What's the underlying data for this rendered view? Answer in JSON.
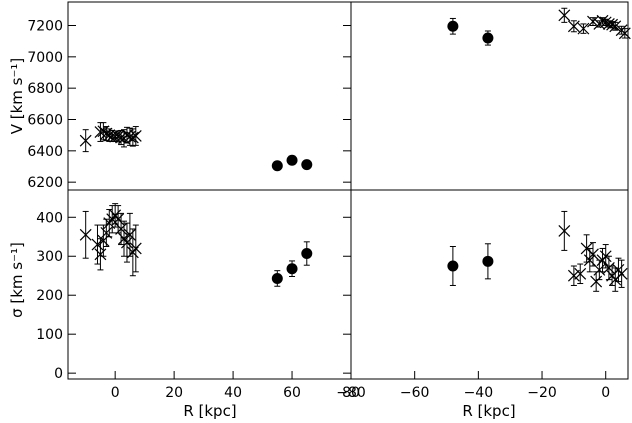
{
  "chart_data": [
    {
      "type": "scatter",
      "panel": "top-left",
      "ylabel": "V [km s⁻¹]",
      "xlim": [
        -16,
        80
      ],
      "ylim": [
        6150,
        7350
      ],
      "yticks": [
        6200,
        6400,
        6600,
        6800,
        7000,
        7200
      ],
      "series": [
        {
          "marker": "cross",
          "points": [
            {
              "x": -10,
              "y": 6465,
              "err": 70
            },
            {
              "x": -5,
              "y": 6520,
              "err": 60
            },
            {
              "x": -4,
              "y": 6525,
              "err": 55
            },
            {
              "x": -3,
              "y": 6510,
              "err": 45
            },
            {
              "x": -2,
              "y": 6500,
              "err": 40
            },
            {
              "x": -1,
              "y": 6495,
              "err": 35
            },
            {
              "x": 0,
              "y": 6490,
              "err": 30
            },
            {
              "x": 1,
              "y": 6492,
              "err": 35
            },
            {
              "x": 2,
              "y": 6485,
              "err": 45
            },
            {
              "x": 3,
              "y": 6480,
              "err": 55
            },
            {
              "x": 4,
              "y": 6500,
              "err": 50
            },
            {
              "x": 5,
              "y": 6490,
              "err": 55
            },
            {
              "x": 6,
              "y": 6485,
              "err": 55
            },
            {
              "x": 7,
              "y": 6495,
              "err": 60
            }
          ]
        },
        {
          "marker": "circle",
          "points": [
            {
              "x": 55,
              "y": 6305,
              "err": 15
            },
            {
              "x": 60,
              "y": 6340,
              "err": 15
            },
            {
              "x": 65,
              "y": 6312,
              "err": 15
            }
          ]
        }
      ]
    },
    {
      "type": "scatter",
      "panel": "top-right",
      "xlim": [
        -80,
        7
      ],
      "ylim": [
        6150,
        7350
      ],
      "series": [
        {
          "marker": "cross",
          "points": [
            {
              "x": -13,
              "y": 7265,
              "err": 45
            },
            {
              "x": -10,
              "y": 7195,
              "err": 35
            },
            {
              "x": -7,
              "y": 7180,
              "err": 30
            },
            {
              "x": -4,
              "y": 7225,
              "err": 25
            },
            {
              "x": -2,
              "y": 7210,
              "err": 20
            },
            {
              "x": -1,
              "y": 7230,
              "err": 20
            },
            {
              "x": 0,
              "y": 7220,
              "err": 20
            },
            {
              "x": 1,
              "y": 7210,
              "err": 20
            },
            {
              "x": 2,
              "y": 7205,
              "err": 20
            },
            {
              "x": 3,
              "y": 7195,
              "err": 25
            },
            {
              "x": 5,
              "y": 7170,
              "err": 25
            },
            {
              "x": 6,
              "y": 7150,
              "err": 30
            }
          ]
        },
        {
          "marker": "circle",
          "points": [
            {
              "x": -48,
              "y": 7195,
              "err": 50
            },
            {
              "x": -37,
              "y": 7120,
              "err": 45
            }
          ]
        }
      ]
    },
    {
      "type": "scatter",
      "panel": "bottom-left",
      "xlabel": "R [kpc]",
      "ylabel": "σ [km s⁻¹]",
      "xlim": [
        -16,
        80
      ],
      "ylim": [
        -15,
        470
      ],
      "xticks": [
        0,
        20,
        40,
        60,
        80
      ],
      "yticks": [
        0,
        100,
        200,
        300,
        400
      ],
      "series": [
        {
          "marker": "cross",
          "points": [
            {
              "x": -10,
              "y": 355,
              "err": 60
            },
            {
              "x": -6,
              "y": 330,
              "err": 50
            },
            {
              "x": -5,
              "y": 305,
              "err": 40
            },
            {
              "x": -4,
              "y": 340,
              "err": 40
            },
            {
              "x": -3,
              "y": 360,
              "err": 35
            },
            {
              "x": -2,
              "y": 385,
              "err": 35
            },
            {
              "x": -1,
              "y": 395,
              "err": 35
            },
            {
              "x": 0,
              "y": 405,
              "err": 30
            },
            {
              "x": 1,
              "y": 395,
              "err": 35
            },
            {
              "x": 2,
              "y": 370,
              "err": 40
            },
            {
              "x": 3,
              "y": 345,
              "err": 45
            },
            {
              "x": 4,
              "y": 335,
              "err": 50
            },
            {
              "x": 5,
              "y": 355,
              "err": 55
            },
            {
              "x": 6,
              "y": 310,
              "err": 60
            },
            {
              "x": 7,
              "y": 320,
              "err": 60
            }
          ]
        },
        {
          "marker": "circle",
          "points": [
            {
              "x": 55,
              "y": 243,
              "err": 20
            },
            {
              "x": 60,
              "y": 268,
              "err": 20
            },
            {
              "x": 65,
              "y": 307,
              "err": 30
            }
          ]
        }
      ]
    },
    {
      "type": "scatter",
      "panel": "bottom-right",
      "xlabel": "R [kpc]",
      "xlim": [
        -80,
        7
      ],
      "ylim": [
        -15,
        470
      ],
      "xticks": [
        -80,
        -60,
        -40,
        -20,
        0
      ],
      "series": [
        {
          "marker": "cross",
          "points": [
            {
              "x": -13,
              "y": 365,
              "err": 50
            },
            {
              "x": -10,
              "y": 250,
              "err": 25
            },
            {
              "x": -8,
              "y": 255,
              "err": 25
            },
            {
              "x": -6,
              "y": 320,
              "err": 35
            },
            {
              "x": -5,
              "y": 290,
              "err": 30
            },
            {
              "x": -4,
              "y": 305,
              "err": 30
            },
            {
              "x": -3,
              "y": 235,
              "err": 25
            },
            {
              "x": -2,
              "y": 265,
              "err": 25
            },
            {
              "x": -1,
              "y": 290,
              "err": 30
            },
            {
              "x": 0,
              "y": 300,
              "err": 30
            },
            {
              "x": 1,
              "y": 270,
              "err": 30
            },
            {
              "x": 2,
              "y": 250,
              "err": 25
            },
            {
              "x": 3,
              "y": 240,
              "err": 30
            },
            {
              "x": 4,
              "y": 265,
              "err": 30
            },
            {
              "x": 5,
              "y": 255,
              "err": 35
            }
          ]
        },
        {
          "marker": "circle",
          "points": [
            {
              "x": -48,
              "y": 275,
              "err": 50
            },
            {
              "x": -37,
              "y": 287,
              "err": 45
            }
          ]
        }
      ]
    }
  ]
}
